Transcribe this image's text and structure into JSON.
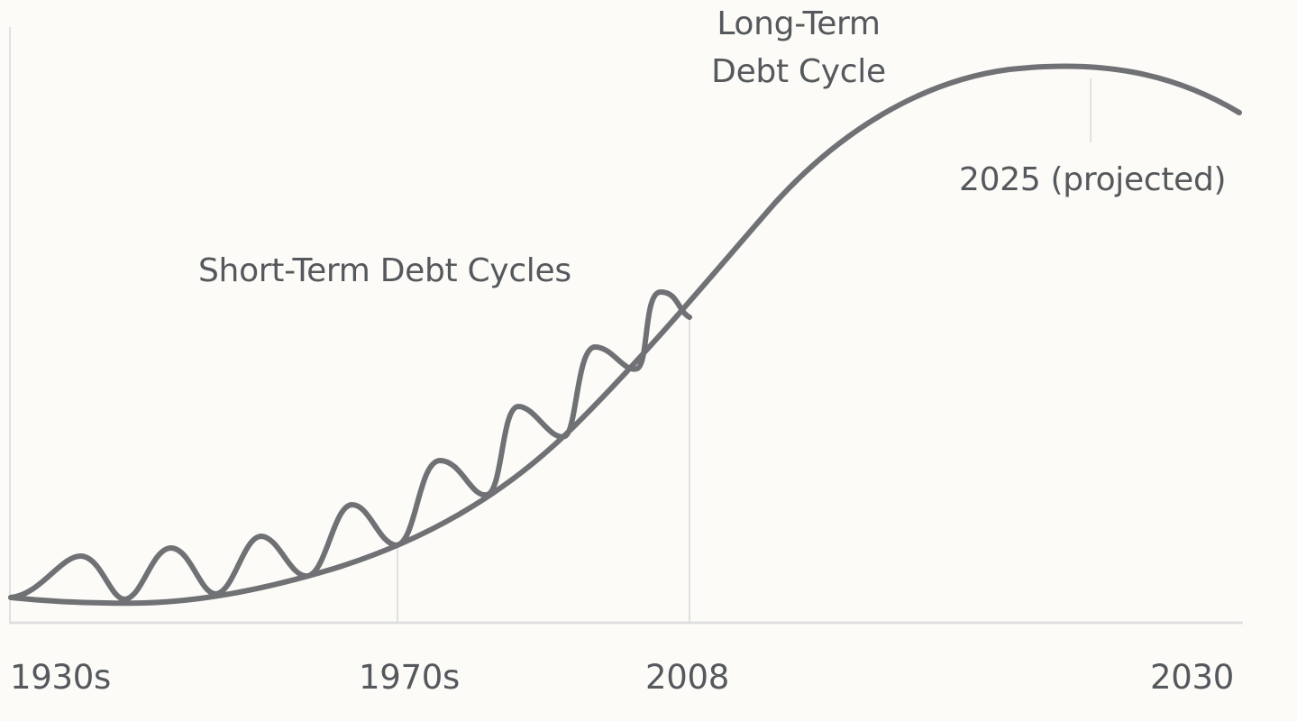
{
  "diagram": {
    "long_term_label": [
      "Long-Term",
      "Debt Cycle"
    ],
    "short_term_label": "Short-Term Debt Cycles",
    "projection_label": "2025 (projected)",
    "x_ticks": [
      "1930s",
      "1970s",
      "2008",
      "2030"
    ],
    "colors": {
      "background": "#fcfbf7",
      "curve": "#6f7175",
      "axis": "#dcdcdc",
      "text": "#55585c"
    }
  }
}
